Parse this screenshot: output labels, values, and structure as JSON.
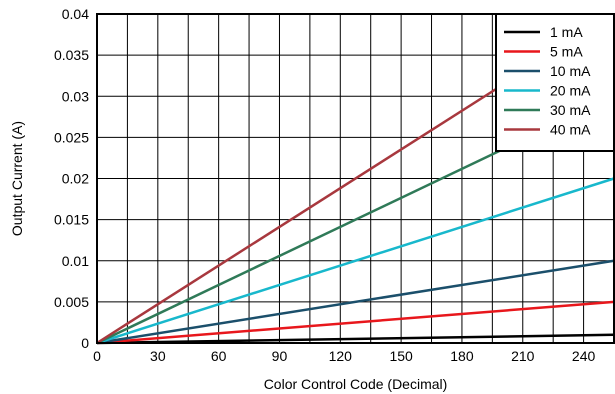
{
  "chart_data": {
    "type": "line",
    "title": "",
    "xlabel": "Color Control Code (Decimal)",
    "ylabel": "Output Current (A)",
    "xlim": [
      0,
      255
    ],
    "ylim": [
      0,
      0.04
    ],
    "x_ticks": [
      0,
      30,
      60,
      90,
      120,
      150,
      180,
      210,
      240
    ],
    "x_tick_labels": [
      "0",
      "30",
      "60",
      "90",
      "120",
      "150",
      "180",
      "210",
      "240"
    ],
    "x_minor_step": 15,
    "y_ticks": [
      0,
      0.005,
      0.01,
      0.015,
      0.02,
      0.025,
      0.03,
      0.035,
      0.04
    ],
    "y_tick_labels": [
      "0",
      "0.005",
      "0.01",
      "0.015",
      "0.02",
      "0.025",
      "0.03",
      "0.035",
      "0.04"
    ],
    "grid": true,
    "legend_position": "top-right",
    "series": [
      {
        "name": "1 mA",
        "color": "#000000",
        "x": [
          0,
          255
        ],
        "y": [
          0,
          0.001
        ]
      },
      {
        "name": "5 mA",
        "color": "#e8171c",
        "x": [
          0,
          255
        ],
        "y": [
          0,
          0.005
        ]
      },
      {
        "name": "10 mA",
        "color": "#1b4f6b",
        "x": [
          0,
          255
        ],
        "y": [
          0,
          0.01
        ]
      },
      {
        "name": "20 mA",
        "color": "#18b8cc",
        "x": [
          0,
          255
        ],
        "y": [
          0,
          0.02
        ]
      },
      {
        "name": "30 mA",
        "color": "#2f7a58",
        "x": [
          0,
          255
        ],
        "y": [
          0,
          0.03
        ]
      },
      {
        "name": "40 mA",
        "color": "#a8383e",
        "x": [
          0,
          255
        ],
        "y": [
          0,
          0.04
        ]
      }
    ]
  }
}
